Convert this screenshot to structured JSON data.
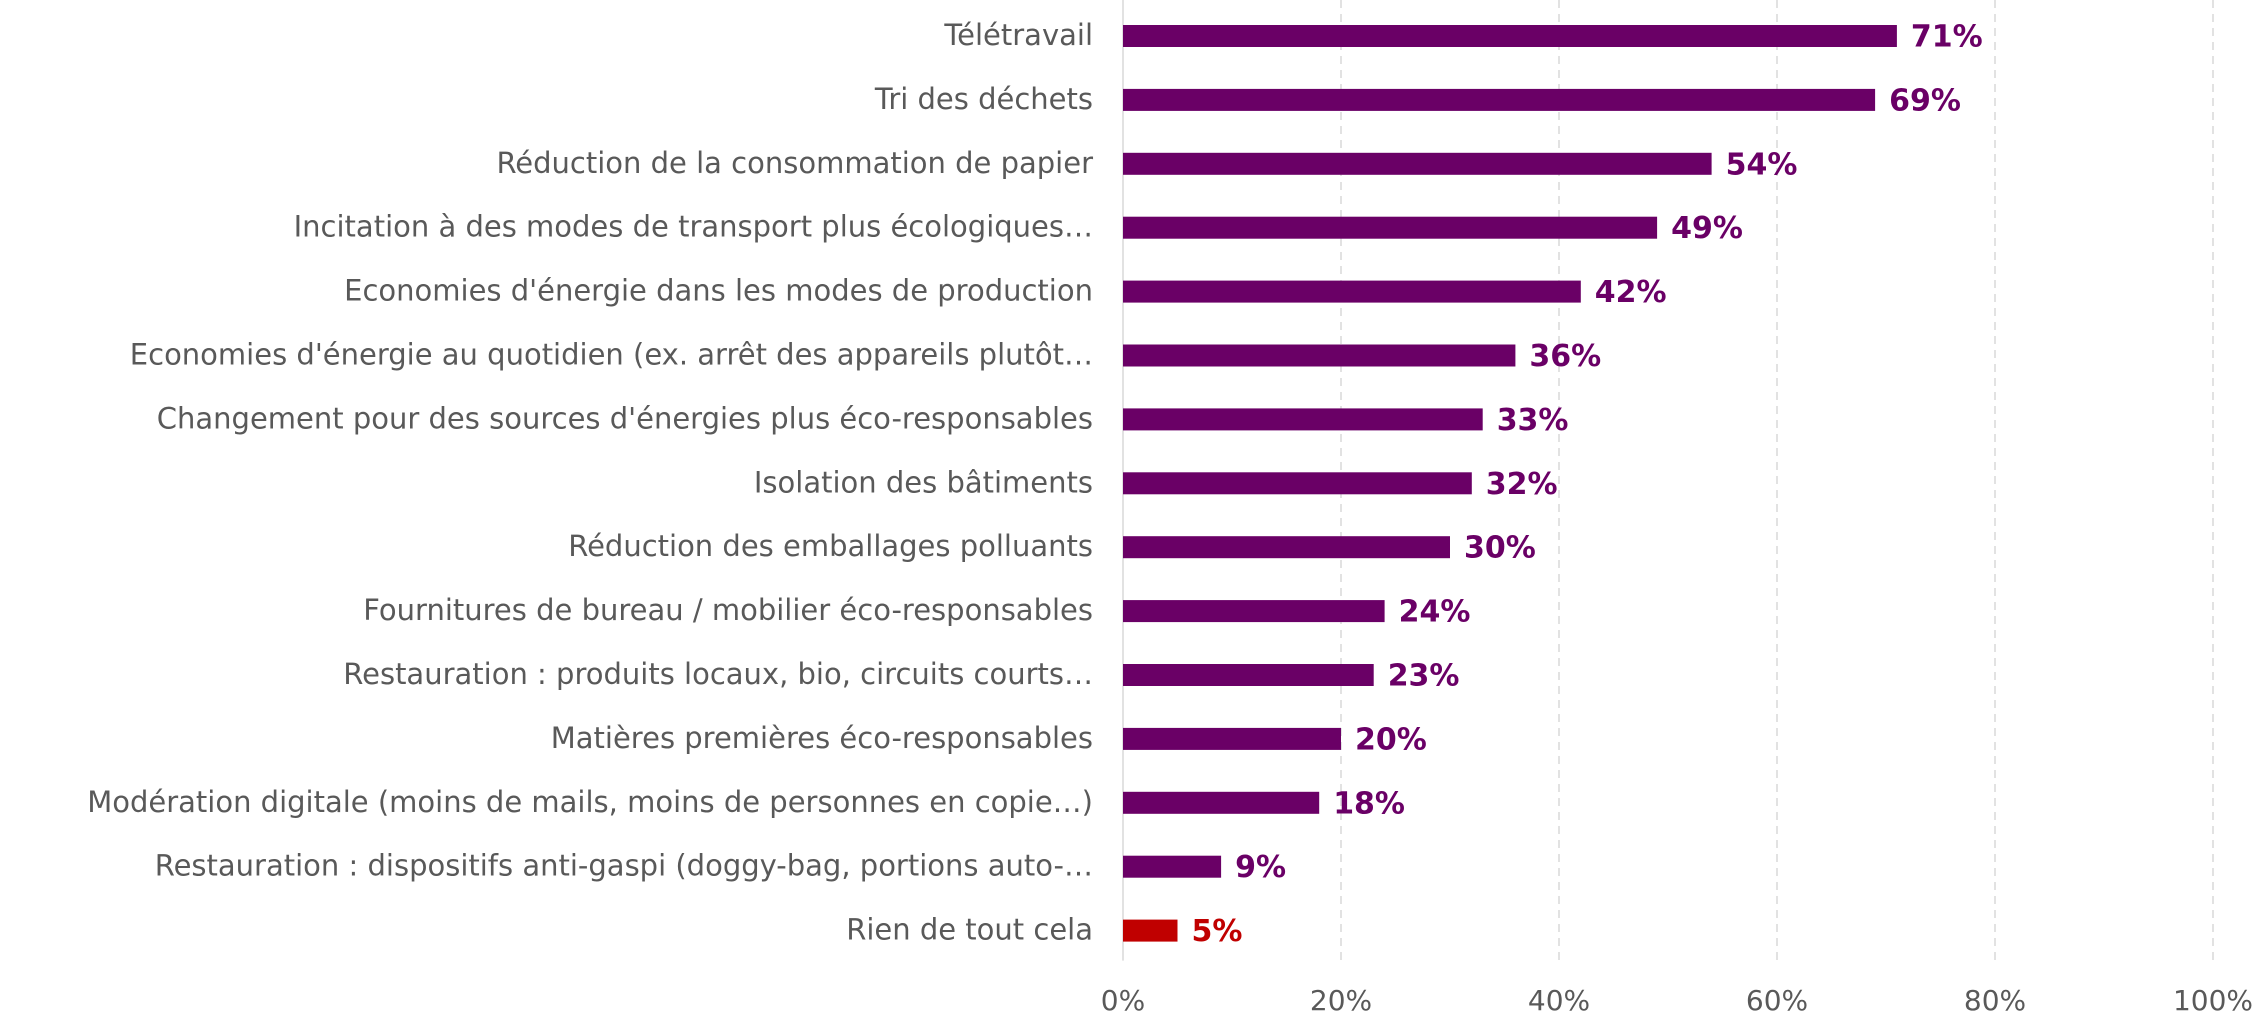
{
  "chart_data": {
    "type": "bar",
    "orientation": "horizontal",
    "categories": [
      "Télétravail",
      "Tri des déchets",
      "Réduction de la consommation de papier",
      "Incitation à des modes de transport plus écologiques…",
      "Economies d'énergie dans les modes de production",
      "Economies d'énergie au quotidien (ex. arrêt des appareils plutôt…",
      "Changement pour des sources d'énergies plus éco-responsables",
      "Isolation des bâtiments",
      "Réduction des emballages polluants",
      "Fournitures de bureau / mobilier éco-responsables",
      "Restauration : produits locaux, bio, circuits courts…",
      "Matières premières éco-responsables",
      "Modération digitale (moins de mails, moins de personnes en copie…)",
      "Restauration : dispositifs anti-gaspi (doggy-bag, portions auto-…",
      "Rien de tout cela"
    ],
    "values": [
      71,
      69,
      54,
      49,
      42,
      36,
      33,
      32,
      30,
      24,
      23,
      20,
      18,
      9,
      5
    ],
    "value_labels": [
      "71%",
      "69%",
      "54%",
      "49%",
      "42%",
      "36%",
      "33%",
      "32%",
      "30%",
      "24%",
      "23%",
      "20%",
      "18%",
      "9%",
      "5%"
    ],
    "colors": [
      "#6a0066",
      "#6a0066",
      "#6a0066",
      "#6a0066",
      "#6a0066",
      "#6a0066",
      "#6a0066",
      "#6a0066",
      "#6a0066",
      "#6a0066",
      "#6a0066",
      "#6a0066",
      "#6a0066",
      "#6a0066",
      "#c00000"
    ],
    "xlim": [
      0,
      100
    ],
    "xticks": [
      {
        "value": 0,
        "label": "0%"
      },
      {
        "value": 20,
        "label": "20%"
      },
      {
        "value": 40,
        "label": "40%"
      },
      {
        "value": 60,
        "label": "60%"
      },
      {
        "value": 80,
        "label": "80%"
      },
      {
        "value": 100,
        "label": "100%"
      }
    ],
    "grid": true
  }
}
